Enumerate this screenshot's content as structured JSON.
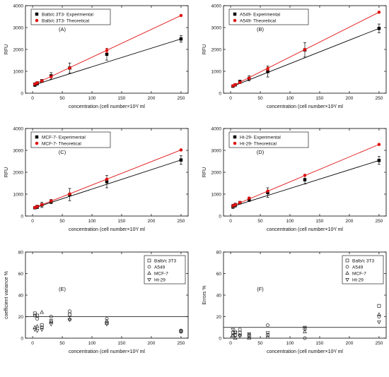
{
  "chart_data": [
    {
      "type": "line",
      "panel_label": "(A)",
      "xlabel": "concentration  (cell number×10³/ ml",
      "ylabel": "RFU",
      "xlim": [
        -12,
        262
      ],
      "ylim": [
        0,
        4000
      ],
      "xticks": [
        0,
        50,
        100,
        150,
        200,
        250
      ],
      "yticks": [
        0,
        1000,
        2000,
        3000,
        4000
      ],
      "legend_position": "top-left",
      "series": [
        {
          "name": "Balb/c 3T3- Experimental",
          "color": "#000000",
          "marker": "square",
          "x": [
            3.9,
            7.8,
            15.6,
            31.2,
            62.5,
            125,
            250
          ],
          "y": [
            390,
            450,
            560,
            790,
            1150,
            1780,
            2480
          ],
          "err": [
            90,
            80,
            70,
            150,
            230,
            270,
            150
          ]
        },
        {
          "name": "Balb/c 3T3- Theoretical",
          "color": "#e01010",
          "marker": "circle",
          "x": [
            3.9,
            7.8,
            15.6,
            31.2,
            62.5,
            125,
            250
          ],
          "y": [
            420,
            470,
            560,
            750,
            1150,
            1950,
            3550
          ],
          "err": [
            0,
            0,
            0,
            0,
            0,
            100,
            0
          ]
        }
      ]
    },
    {
      "type": "line",
      "panel_label": "(B)",
      "xlabel": "concentration  (cell number×10³/ ml",
      "ylabel": "RFU",
      "xlim": [
        -12,
        262
      ],
      "ylim": [
        0,
        4000
      ],
      "xticks": [
        0,
        50,
        100,
        150,
        200,
        250
      ],
      "yticks": [
        0,
        1000,
        2000,
        3000,
        4000
      ],
      "legend_position": "top-left",
      "series": [
        {
          "name": "A549- Experimental",
          "color": "#000000",
          "marker": "square",
          "x": [
            3.9,
            7.8,
            15.6,
            31.2,
            62.5,
            125,
            250
          ],
          "y": [
            320,
            380,
            520,
            680,
            990,
            1980,
            2960
          ],
          "err": [
            40,
            60,
            80,
            120,
            250,
            330,
            200
          ]
        },
        {
          "name": "A549- Theoretical",
          "color": "#e01010",
          "marker": "circle",
          "x": [
            3.9,
            7.8,
            15.6,
            31.2,
            62.5,
            125,
            250
          ],
          "y": [
            340,
            390,
            490,
            690,
            1110,
            1990,
            3700
          ],
          "err": [
            0,
            0,
            0,
            0,
            80,
            0,
            0
          ]
        }
      ]
    },
    {
      "type": "line",
      "panel_label": "(C)",
      "xlabel": "concentration  (cell number×10³/ ml",
      "ylabel": "RFU",
      "xlim": [
        -12,
        262
      ],
      "ylim": [
        0,
        4000
      ],
      "xticks": [
        0,
        50,
        100,
        150,
        200,
        250
      ],
      "yticks": [
        0,
        1000,
        2000,
        3000,
        4000
      ],
      "legend_position": "top-left",
      "series": [
        {
          "name": "MCF-7- Experimental",
          "color": "#000000",
          "marker": "square",
          "x": [
            3.9,
            7.8,
            15.6,
            31.2,
            62.5,
            125,
            250
          ],
          "y": [
            380,
            420,
            510,
            660,
            980,
            1570,
            2560
          ],
          "err": [
            40,
            80,
            120,
            100,
            280,
            280,
            200
          ]
        },
        {
          "name": "MCF-7- Theoretical",
          "color": "#e01010",
          "marker": "circle",
          "x": [
            3.9,
            7.8,
            15.6,
            31.2,
            62.5,
            125,
            250
          ],
          "y": [
            390,
            430,
            520,
            690,
            1010,
            1680,
            3020
          ],
          "err": [
            0,
            0,
            0,
            0,
            0,
            0,
            0
          ]
        }
      ]
    },
    {
      "type": "line",
      "panel_label": "(D)",
      "xlabel": "concentration  (cell number×10³/ ml",
      "ylabel": "RFU",
      "xlim": [
        -12,
        262
      ],
      "ylim": [
        0,
        4000
      ],
      "xticks": [
        0,
        50,
        100,
        150,
        200,
        250
      ],
      "yticks": [
        0,
        1000,
        2000,
        3000,
        4000
      ],
      "legend_position": "top-left",
      "series": [
        {
          "name": "Ht-29- Experimental",
          "color": "#000000",
          "marker": "square",
          "x": [
            3.9,
            7.8,
            15.6,
            31.2,
            62.5,
            125,
            250
          ],
          "y": [
            440,
            500,
            610,
            760,
            1070,
            1660,
            2540
          ],
          "err": [
            100,
            90,
            60,
            100,
            220,
            200,
            180
          ]
        },
        {
          "name": "Ht-29- Theoretical",
          "color": "#e01010",
          "marker": "circle",
          "x": [
            3.9,
            7.8,
            15.6,
            31.2,
            62.5,
            125,
            250
          ],
          "y": [
            470,
            520,
            620,
            820,
            1140,
            1860,
            3270
          ],
          "err": [
            0,
            0,
            0,
            0,
            0,
            0,
            0
          ]
        }
      ]
    },
    {
      "type": "scatter",
      "panel_label": "(E)",
      "xlabel": "concentration  (cell number×10³/ ml",
      "ylabel": "coefficient variance %",
      "xlim": [
        -12,
        262
      ],
      "ylim": [
        0,
        80
      ],
      "xticks": [
        0,
        50,
        100,
        150,
        200,
        250
      ],
      "yticks": [
        0,
        20,
        40,
        60,
        80
      ],
      "reference_line": 20,
      "legend_position": "top-right",
      "series": [
        {
          "name": "Balb/c 3T3",
          "marker": "square",
          "x": [
            3.9,
            7.8,
            15.6,
            31.2,
            62.5,
            125,
            250
          ],
          "y": [
            23,
            21,
            12,
            16,
            22,
            14,
            6.5
          ]
        },
        {
          "name": "A549",
          "marker": "circle",
          "x": [
            3.9,
            7.8,
            15.6,
            31.2,
            62.5,
            125,
            250
          ],
          "y": [
            21,
            18,
            10,
            20,
            25,
            18,
            7
          ]
        },
        {
          "name": "MCF-7",
          "marker": "triangle-up",
          "x": [
            3.9,
            7.8,
            15.6,
            31.2,
            62.5,
            125,
            250
          ],
          "y": [
            10,
            11,
            24,
            15,
            18,
            16,
            7
          ]
        },
        {
          "name": "Ht-29",
          "marker": "triangle-down",
          "x": [
            3.9,
            7.8,
            15.6,
            31.2,
            62.5,
            125,
            250
          ],
          "y": [
            8,
            7,
            8,
            13,
            17,
            13,
            6
          ]
        }
      ]
    },
    {
      "type": "scatter",
      "panel_label": "(F)",
      "xlabel": "concentration  (cell number×10³/ ml",
      "ylabel": "Errors %",
      "xlim": [
        -12,
        262
      ],
      "ylim": [
        0,
        80
      ],
      "xticks": [
        0,
        50,
        100,
        150,
        200,
        250
      ],
      "yticks": [
        0,
        20,
        40,
        60,
        80
      ],
      "reference_line": 10,
      "legend_position": "top-right",
      "series": [
        {
          "name": "Balb/c 3T3",
          "marker": "square",
          "x": [
            3.9,
            7.8,
            15.6,
            31.2,
            62.5,
            125,
            250
          ],
          "y": [
            5,
            3,
            5,
            2,
            3,
            9,
            30
          ]
        },
        {
          "name": "A549",
          "marker": "circle",
          "x": [
            3.9,
            7.8,
            15.6,
            31.2,
            62.5,
            125,
            250
          ],
          "y": [
            2,
            6,
            8,
            3,
            12,
            0,
            20
          ]
        },
        {
          "name": "MCF-7",
          "marker": "triangle-up",
          "x": [
            3.9,
            7.8,
            15.6,
            31.2,
            62.5,
            125,
            250
          ],
          "y": [
            3,
            0,
            3,
            0,
            1,
            6,
            22
          ]
        },
        {
          "name": "Ht-29",
          "marker": "triangle-down",
          "x": [
            3.9,
            7.8,
            15.6,
            31.2,
            62.5,
            125,
            250
          ],
          "y": [
            8,
            5,
            2,
            4,
            5,
            10,
            15
          ]
        }
      ]
    }
  ]
}
